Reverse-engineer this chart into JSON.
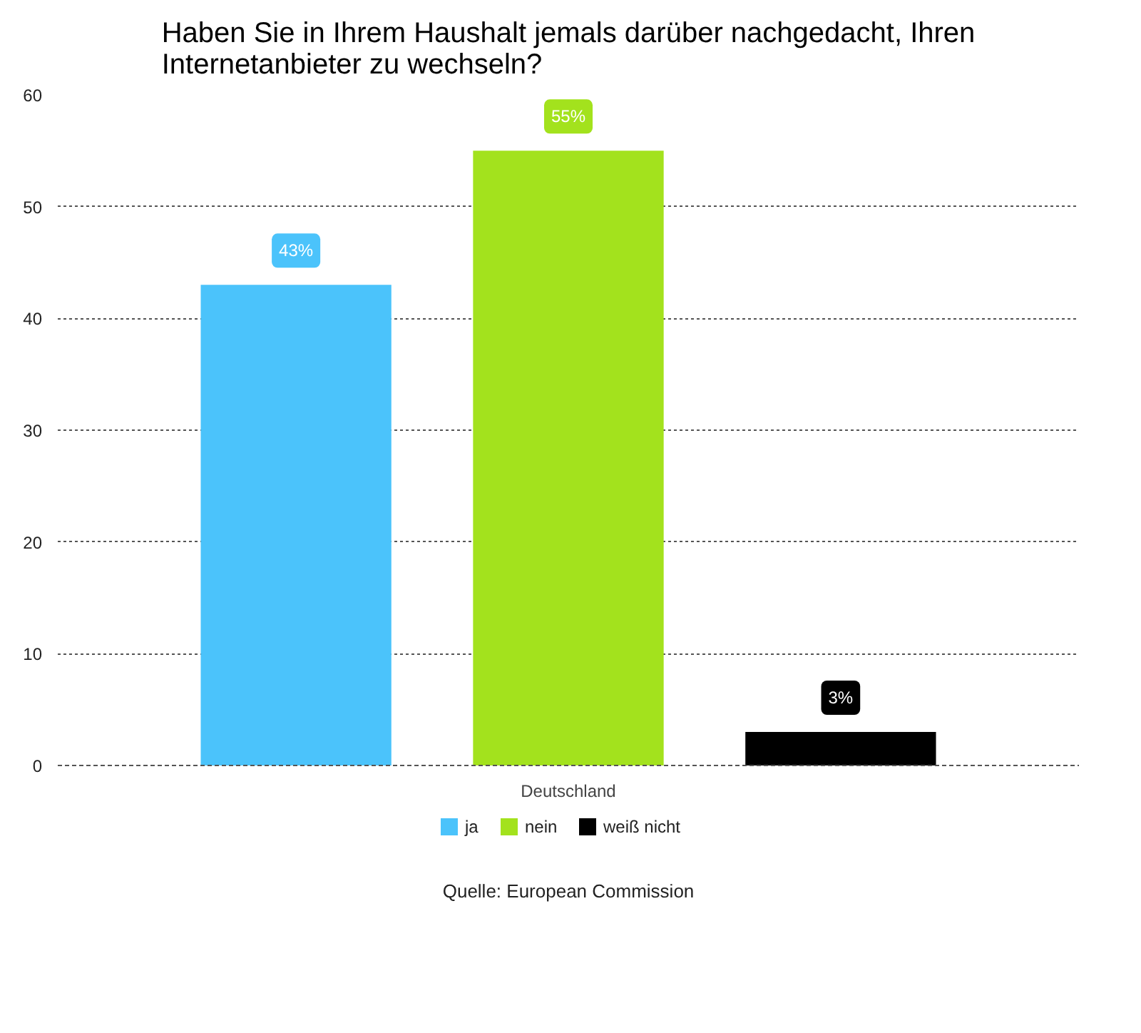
{
  "chart_data": {
    "type": "bar",
    "title": "Haben Sie in Ihrem Haushalt jemals darüber nachgedacht, Ihren Internetanbieter zu wechseln?",
    "categories": [
      "Deutschland"
    ],
    "series": [
      {
        "name": "ja",
        "color": "#4bc3fb",
        "values": [
          43
        ],
        "value_labels": [
          "43%"
        ]
      },
      {
        "name": "nein",
        "color": "#a3e21d",
        "values": [
          55
        ],
        "value_labels": [
          "55%"
        ]
      },
      {
        "name": "weiß nicht",
        "color": "#000000",
        "values": [
          3
        ],
        "value_labels": [
          "3%"
        ]
      }
    ],
    "ylim": [
      0,
      60
    ],
    "yticks": [
      0,
      10,
      20,
      30,
      40,
      50,
      60
    ],
    "grid": "y",
    "legend": "bottom",
    "annotations": [
      "Quelle: European Commission"
    ]
  }
}
